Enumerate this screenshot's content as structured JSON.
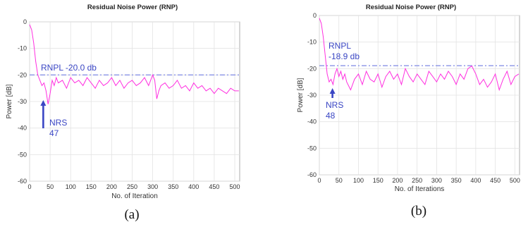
{
  "chart_data": [
    {
      "panel": "(a)",
      "type": "line",
      "title": "Residual Noise Power (RNP)",
      "xlabel": "No. of Iteration",
      "ylabel": "Power [dB]",
      "xlim": [
        0,
        512
      ],
      "ylim": [
        -60,
        0
      ],
      "xticks": [
        0,
        50,
        100,
        150,
        200,
        250,
        300,
        350,
        400,
        450,
        500
      ],
      "yticks": [
        0,
        -10,
        -20,
        -30,
        -40,
        -50,
        -60
      ],
      "grid": true,
      "threshold": {
        "label": "RNPL -20.0 db",
        "value": -20.0
      },
      "arrow": {
        "label": [
          "NRS",
          "47"
        ],
        "x": 47
      },
      "series": [
        {
          "color": "#ff2fe0",
          "x": [
            0,
            5,
            10,
            15,
            20,
            25,
            30,
            35,
            40,
            45,
            50,
            55,
            60,
            65,
            70,
            80,
            90,
            100,
            110,
            120,
            130,
            140,
            150,
            160,
            170,
            180,
            190,
            200,
            210,
            220,
            230,
            240,
            250,
            260,
            270,
            280,
            290,
            300,
            305,
            310,
            315,
            320,
            330,
            340,
            350,
            360,
            370,
            380,
            390,
            400,
            410,
            420,
            430,
            440,
            450,
            460,
            470,
            480,
            490,
            500,
            510
          ],
          "y": [
            -1,
            -3,
            -8,
            -15,
            -20,
            -22,
            -24,
            -23,
            -26,
            -31,
            -27,
            -22,
            -24,
            -21,
            -23,
            -22,
            -25,
            -21,
            -23,
            -22,
            -24,
            -21,
            -23,
            -25,
            -22,
            -24,
            -23,
            -21,
            -24,
            -22,
            -25,
            -23,
            -22,
            -24,
            -23,
            -21,
            -24,
            -20,
            -22,
            -29,
            -26,
            -24,
            -23,
            -25,
            -24,
            -22,
            -25,
            -24,
            -26,
            -23,
            -25,
            -24,
            -26,
            -25,
            -27,
            -25,
            -26,
            -27,
            -25,
            -26,
            -26
          ]
        }
      ]
    },
    {
      "panel": "(b)",
      "type": "line",
      "title": "Residual Noise Power (RNP)",
      "xlabel": "No. of Iterations",
      "ylabel": "Power [dB]",
      "xlim": [
        0,
        512
      ],
      "ylim": [
        -60,
        0
      ],
      "xticks": [
        0,
        50,
        100,
        150,
        200,
        250,
        300,
        350,
        400,
        450,
        500
      ],
      "yticks": [
        0,
        -10,
        -20,
        -30,
        -40,
        -50,
        -60
      ],
      "grid": true,
      "threshold": {
        "label": "RNPL -18.9 db",
        "value": -18.9
      },
      "arrow": {
        "label": [
          "NRS",
          "48"
        ],
        "x": 48
      },
      "series": [
        {
          "color": "#ff2fe0",
          "x": [
            0,
            5,
            10,
            15,
            20,
            25,
            30,
            35,
            40,
            45,
            50,
            55,
            60,
            65,
            70,
            80,
            90,
            100,
            110,
            120,
            130,
            140,
            150,
            160,
            170,
            180,
            190,
            200,
            210,
            220,
            230,
            240,
            250,
            260,
            270,
            280,
            290,
            300,
            310,
            320,
            330,
            340,
            350,
            360,
            370,
            380,
            390,
            400,
            410,
            420,
            430,
            440,
            450,
            460,
            470,
            480,
            490,
            500,
            510
          ],
          "y": [
            -1,
            -3,
            -8,
            -15,
            -22,
            -25,
            -24,
            -26,
            -22,
            -20,
            -23,
            -21,
            -24,
            -22,
            -25,
            -28,
            -24,
            -22,
            -26,
            -21,
            -24,
            -25,
            -22,
            -27,
            -23,
            -21,
            -24,
            -22,
            -26,
            -20,
            -23,
            -25,
            -22,
            -24,
            -26,
            -21,
            -23,
            -25,
            -22,
            -24,
            -21,
            -23,
            -26,
            -22,
            -24,
            -20,
            -19,
            -22,
            -26,
            -24,
            -27,
            -25,
            -22,
            -28,
            -24,
            -21,
            -26,
            -23,
            -22
          ]
        }
      ]
    }
  ]
}
